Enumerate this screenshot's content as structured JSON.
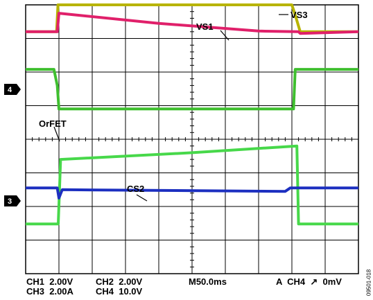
{
  "chart_data": {
    "type": "line",
    "grid": true,
    "xlim": [
      0,
      10
    ],
    "ylim": [
      0,
      8
    ],
    "series": [
      {
        "name": "VS3",
        "color": "#b8b400",
        "points": [
          [
            0,
            7.2
          ],
          [
            0.93,
            7.2
          ],
          [
            0.97,
            8.0
          ],
          [
            8.0,
            8.0
          ],
          [
            8.1,
            7.7
          ],
          [
            8.25,
            7.2
          ],
          [
            10,
            7.2
          ]
        ]
      },
      {
        "name": "VS1",
        "color": "#e0206a",
        "points": [
          [
            0,
            7.2
          ],
          [
            0.95,
            7.2
          ],
          [
            1.0,
            7.75
          ],
          [
            4,
            7.45
          ],
          [
            7,
            7.22
          ],
          [
            8.2,
            7.2
          ],
          [
            8.25,
            7.15
          ],
          [
            10,
            7.2
          ]
        ]
      },
      {
        "name": "",
        "color": "#3fbf2f",
        "points": [
          [
            0,
            6.08
          ],
          [
            0.85,
            6.08
          ],
          [
            0.95,
            5.6
          ],
          [
            1.0,
            4.9
          ],
          [
            8.05,
            4.9
          ],
          [
            8.1,
            6.08
          ],
          [
            10,
            6.08
          ]
        ]
      },
      {
        "name": "",
        "color": "#47d84a",
        "points": [
          [
            0,
            1.48
          ],
          [
            0.98,
            1.48
          ],
          [
            1.05,
            3.4
          ],
          [
            5,
            3.6
          ],
          [
            8.15,
            3.8
          ],
          [
            8.2,
            1.48
          ],
          [
            10,
            1.48
          ]
        ]
      },
      {
        "name": "CS2",
        "color": "#1c2fc0",
        "points": [
          [
            0,
            2.55
          ],
          [
            0.95,
            2.55
          ],
          [
            1.0,
            2.25
          ],
          [
            1.1,
            2.5
          ],
          [
            7.8,
            2.45
          ],
          [
            7.95,
            2.55
          ],
          [
            10,
            2.55
          ]
        ]
      }
    ],
    "annotations": [
      "VS3",
      "VS1",
      "OrFET",
      "CS2"
    ],
    "channel_markers": [
      "4",
      "3"
    ]
  },
  "footer": {
    "ch1": "CH1  2.00V",
    "ch3": "CH3  2.00A",
    "ch2": "CH2  2.00V",
    "ch4": "CH4  10.0V",
    "timebase": "M50.0ms",
    "trigger": "A  CH4  ↗  0mV"
  },
  "figure_id": "09501-018"
}
